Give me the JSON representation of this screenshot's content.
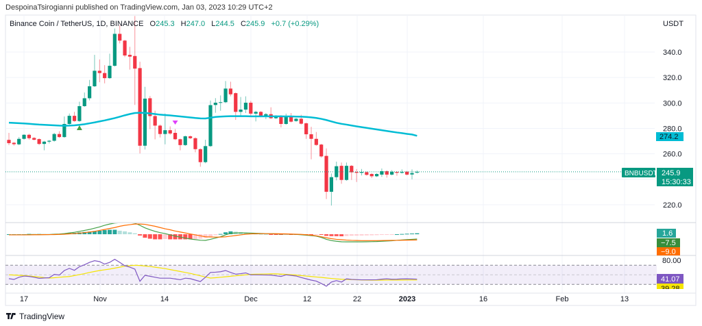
{
  "header": {
    "published": "DespoinaTsirogianni published on TradingView.com, Jan 03, 2023 10:29 UTC+2"
  },
  "legend": {
    "symbol": "Binance Coin / TetherUS, 1D, BINANCE",
    "o_label": "O",
    "o": "245.3",
    "h_label": "H",
    "h": "247.0",
    "l_label": "L",
    "l": "244.5",
    "c_label": "C",
    "c": "245.9",
    "change": "+0.7 (+0.29%)"
  },
  "price_axis": {
    "currency": "USDT",
    "ticks": [
      "340.0",
      "320.0",
      "300.0",
      "280.0",
      "260.0",
      "220.0"
    ],
    "ma_label": "274.2",
    "symbol_tag": "BNBUSDT",
    "last_price": "245.9",
    "countdown": "15:30:33"
  },
  "macd_axis": {
    "histogram": "1.6",
    "macd": "−7.5",
    "signal": "−9.0"
  },
  "rsi_axis": {
    "level_top": "80.00",
    "rsi": "41.07",
    "rsi_ma": "39.28"
  },
  "time_axis": {
    "labels": [
      "17",
      "Nov",
      "14",
      "Dec",
      "12",
      "22",
      "2023",
      "16",
      "Feb",
      "13"
    ]
  },
  "footer": {
    "brand": "TradingView"
  },
  "colors": {
    "up": "#089981",
    "down": "#f23645",
    "ma": "#00bcd4",
    "macd": "#43a047",
    "signal": "#ff6d00",
    "rsi": "#7e57c2",
    "rsi_ma": "#f5e400"
  },
  "chart_data": {
    "type": "candlestick",
    "interval": "1D",
    "ylim": [
      210,
      372
    ],
    "candles_ohlc": [
      [
        271,
        276.5,
        266.9,
        268.4
      ],
      [
        268.7,
        269.3,
        266.5,
        267.6
      ],
      [
        267.5,
        273.2,
        266.8,
        271.8
      ],
      [
        271.8,
        275.4,
        271.2,
        275
      ],
      [
        275,
        275.8,
        271.1,
        272.3
      ],
      [
        272.5,
        273.2,
        270.6,
        271.1
      ],
      [
        271.6,
        272.2,
        266.9,
        267.8
      ],
      [
        267.8,
        270.2,
        262.8,
        269.6
      ],
      [
        269.6,
        270.9,
        268.2,
        270.3
      ],
      [
        270.3,
        276.5,
        269.6,
        275.6
      ],
      [
        275.6,
        277.8,
        272.6,
        273.2
      ],
      [
        273.2,
        289.4,
        272.6,
        283.5
      ],
      [
        283.5,
        291.7,
        282.9,
        289.9
      ],
      [
        289.9,
        293,
        285.2,
        285.8
      ],
      [
        285.8,
        301,
        285.2,
        297.5
      ],
      [
        297.5,
        308.2,
        296.9,
        303.7
      ],
      [
        303.7,
        318.1,
        302,
        313.1
      ],
      [
        313.1,
        337.8,
        312.5,
        325.3
      ],
      [
        325.3,
        334.2,
        316.3,
        323.5
      ],
      [
        323.5,
        329.7,
        315.4,
        319.5
      ],
      [
        319.5,
        338.7,
        318.9,
        329.2
      ],
      [
        329.2,
        358.5,
        328.6,
        354.3
      ],
      [
        354.3,
        361.2,
        346.8,
        349
      ],
      [
        349,
        349.6,
        336,
        337.3
      ],
      [
        337.8,
        344.1,
        326.2,
        336.4
      ],
      [
        336.9,
        368.3,
        298.4,
        327
      ],
      [
        327.4,
        332.4,
        260.3,
        266.4
      ],
      [
        266.4,
        312.7,
        263.4,
        303.4
      ],
      [
        303.7,
        305.5,
        279.5,
        289.7
      ],
      [
        289.7,
        293.9,
        271.4,
        282.2
      ],
      [
        282.2,
        283,
        272.9,
        275.6
      ],
      [
        275.6,
        291.7,
        267.5,
        278.6
      ],
      [
        278.6,
        281.6,
        275,
        276
      ],
      [
        276.5,
        279.5,
        270.9,
        271.5
      ],
      [
        271.5,
        272,
        262.8,
        266.9
      ],
      [
        266.9,
        274.4,
        266.3,
        273.8
      ],
      [
        273.8,
        274.4,
        271.7,
        272.3
      ],
      [
        272.3,
        273,
        261.2,
        263.7
      ],
      [
        263.7,
        264.3,
        249.9,
        253.5
      ],
      [
        253.5,
        271.1,
        252.6,
        266.1
      ],
      [
        266.1,
        301.9,
        265.5,
        298.3
      ],
      [
        298.4,
        303.8,
        292.3,
        300.2
      ],
      [
        300.2,
        305.9,
        293.9,
        300.6
      ],
      [
        300.6,
        317.2,
        299.9,
        311.3
      ],
      [
        311.3,
        316.7,
        305.2,
        306.8
      ],
      [
        307.7,
        308.3,
        286.7,
        293
      ],
      [
        293,
        304.7,
        289.4,
        294.8
      ],
      [
        294.8,
        305.2,
        292.1,
        300.2
      ],
      [
        300.2,
        301.6,
        290.2,
        291.6
      ],
      [
        291.6,
        293.9,
        285.5,
        293
      ],
      [
        293,
        293.6,
        288.8,
        289.4
      ],
      [
        289.4,
        292.1,
        287.3,
        291.2
      ],
      [
        291.2,
        296.6,
        287.4,
        288
      ],
      [
        288,
        290.4,
        287.4,
        289.8
      ],
      [
        289.8,
        290.4,
        280.8,
        283.5
      ],
      [
        283.5,
        291.6,
        282.9,
        289.8
      ],
      [
        289.8,
        292.1,
        284.7,
        285.3
      ],
      [
        285.8,
        288.2,
        285.2,
        287.6
      ],
      [
        287.6,
        290.7,
        283.1,
        283.7
      ],
      [
        284,
        284.6,
        271.8,
        275.4
      ],
      [
        275.4,
        281.3,
        255.7,
        271.8
      ],
      [
        271.8,
        277.2,
        266.4,
        267
      ],
      [
        267.3,
        267.9,
        257.1,
        258
      ],
      [
        258.4,
        264.3,
        224.5,
        230.2
      ],
      [
        230.2,
        244.6,
        219.4,
        241.7
      ],
      [
        241.7,
        253.9,
        239.2,
        250.3
      ],
      [
        250.6,
        253.2,
        236.5,
        239.5
      ],
      [
        239.5,
        253.2,
        238.9,
        250.6
      ],
      [
        250.6,
        251.2,
        239.5,
        245.5
      ],
      [
        245.8,
        248.1,
        237.9,
        245.1
      ],
      [
        245.1,
        248.1,
        243.1,
        245.8
      ],
      [
        245.6,
        246.2,
        242.9,
        243.5
      ],
      [
        244.2,
        244.8,
        241,
        242.4
      ],
      [
        242.4,
        244.8,
        241.8,
        244.2
      ],
      [
        243.7,
        248.5,
        241.9,
        246.4
      ],
      [
        246.4,
        247,
        241.3,
        243.7
      ],
      [
        243.7,
        247.2,
        243.1,
        246
      ],
      [
        245.8,
        246.4,
        242.8,
        245.1
      ],
      [
        245.1,
        247.8,
        244.5,
        245.8
      ],
      [
        246,
        246.6,
        243.1,
        243.7
      ],
      [
        243.8,
        247.8,
        240,
        244.9
      ],
      [
        245.3,
        247,
        244.5,
        245.9
      ]
    ],
    "moving_average": [
      284.5,
      284.3,
      284.1,
      283.9,
      283.6,
      283.3,
      283,
      282.8,
      282.6,
      282.4,
      282.2,
      282.1,
      282.2,
      282.4,
      282.8,
      283.3,
      284,
      284.7,
      285.5,
      286.3,
      287.2,
      288.1,
      289.2,
      290.3,
      291.3,
      292.1,
      292.3,
      292.2,
      291.8,
      291.3,
      290.8,
      290.5,
      290.2,
      289.8,
      289.4,
      289,
      288.6,
      288.2,
      287.9,
      287.8,
      288.4,
      289,
      289.3,
      289.5,
      289.6,
      289.6,
      289.6,
      289.6,
      289.5,
      289.5,
      289.5,
      289.5,
      289.5,
      289.5,
      289.5,
      289.4,
      289.4,
      289.3,
      289.2,
      289,
      288.7,
      288.2,
      287.5,
      286.6,
      285.5,
      284.4,
      283.6,
      283,
      282.3,
      281.6,
      281,
      280.4,
      279.8,
      279.2,
      278.6,
      278,
      277.4,
      276.8,
      276.3,
      275.7,
      275.2,
      274.2
    ],
    "signals": [
      {
        "type": "buy",
        "index": 14
      },
      {
        "type": "sell",
        "index": 33
      }
    ],
    "macd": [
      -1,
      -1,
      -1,
      -1,
      -0.5,
      -0.5,
      -0.5,
      -0.5,
      -0.5,
      0,
      0.3,
      1,
      2,
      3,
      4.5,
      6,
      7.5,
      9.5,
      11.5,
      14,
      16,
      17.5,
      18,
      18.5,
      18,
      17.5,
      14,
      10,
      7,
      4.5,
      2.5,
      1,
      -1,
      -3,
      -4.5,
      -6,
      -7.5,
      -8.5,
      -9.5,
      -9.7,
      -8,
      -6,
      -4,
      -1,
      1.5,
      2,
      2.2,
      2,
      1.8,
      1.5,
      1.2,
      1,
      0.8,
      0.5,
      0.3,
      0.2,
      0,
      -0.3,
      -0.8,
      -1.5,
      -2.2,
      -3,
      -5,
      -8,
      -10,
      -11,
      -11.8,
      -12,
      -12,
      -12,
      -12,
      -11.8,
      -11.6,
      -11.4,
      -11,
      -10.6,
      -10.2,
      -9.6,
      -9,
      -8.5,
      -8,
      -7.5
    ],
    "macd_signal": [
      -1,
      -1,
      -1,
      -1,
      -1,
      -0.8,
      -0.8,
      -0.7,
      -0.6,
      -0.5,
      -0.3,
      0,
      0.5,
      1,
      1.7,
      2.5,
      3.5,
      4.5,
      6,
      7.5,
      9,
      10.5,
      12.5,
      14,
      15,
      16,
      16,
      15.5,
      14,
      12.5,
      10.5,
      8.5,
      7,
      5,
      3.5,
      2,
      0.5,
      -1,
      -2.5,
      -4,
      -4.3,
      -4.5,
      -4.4,
      -4,
      -3,
      -2,
      -1,
      0,
      0.5,
      0.8,
      0.9,
      0.9,
      0.9,
      0.8,
      0.7,
      0.5,
      0.3,
      0,
      -0.3,
      -0.8,
      -1.5,
      -2.5,
      -4,
      -5.5,
      -7,
      -8,
      -8.6,
      -9.2,
      -9.6,
      -9.8,
      -10,
      -10,
      -10,
      -10,
      -9.9,
      -9.8,
      -9.7,
      -9.6,
      -9.4,
      -9.3,
      -9.1,
      -9
    ],
    "rsi": [
      42,
      40.4,
      45,
      47.5,
      46.7,
      45,
      42.8,
      43.5,
      44,
      51,
      49.5,
      59,
      63.5,
      59.5,
      67,
      71,
      76,
      79.5,
      77.6,
      72.4,
      76,
      82.4,
      76,
      69,
      66,
      61.9,
      36.6,
      49,
      47,
      45,
      43,
      43,
      43,
      41.5,
      39.8,
      43,
      42,
      39,
      36,
      45,
      55,
      55.5,
      56.5,
      59,
      55,
      51.4,
      52.5,
      54,
      50,
      50,
      49.8,
      49.6,
      49.5,
      48,
      46.7,
      50,
      48.8,
      47.6,
      44.5,
      41.7,
      39,
      37,
      32,
      26.2,
      35,
      38,
      35,
      41.7,
      40.5,
      40,
      39.6,
      39.6,
      39.6,
      39.8,
      41,
      41.7,
      40.8,
      41,
      41.5,
      41.7,
      41.3,
      41.07
    ],
    "rsi_ma": [
      50,
      49.5,
      49,
      48.5,
      47.6,
      46.5,
      45.5,
      44.3,
      43.3,
      44,
      45,
      45.8,
      46.5,
      48.5,
      50.5,
      52.5,
      55,
      57,
      59,
      60.5,
      62,
      64,
      66,
      68,
      69.2,
      70,
      69.5,
      68.5,
      67.5,
      66,
      64.5,
      63,
      61,
      59,
      57,
      55,
      53,
      50.5,
      48,
      45.5,
      43.3,
      44,
      45,
      46,
      47,
      48,
      49,
      50,
      51,
      51.4,
      51.6,
      51.8,
      52,
      52,
      51.5,
      51,
      50.3,
      49.5,
      48.5,
      47.5,
      46.5,
      45.5,
      44.7,
      43.5,
      42.5,
      41.5,
      40.8,
      40.4,
      40,
      39.7,
      39.4,
      39.2,
      39,
      39,
      39,
      39.1,
      39.1,
      39.2,
      39.2,
      39.3,
      39.3,
      39.28
    ],
    "rsi_bands": [
      70,
      50,
      30
    ]
  }
}
